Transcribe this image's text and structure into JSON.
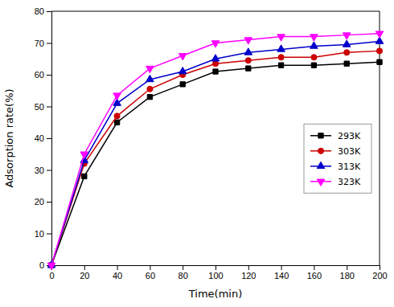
{
  "chart_data": {
    "type": "line",
    "xlabel": "Time(min)",
    "ylabel": "Adsorption rate(%)",
    "x": [
      0,
      20,
      40,
      60,
      80,
      100,
      120,
      140,
      160,
      180,
      200
    ],
    "series": [
      {
        "name": "293K",
        "color": "#000000",
        "marker": "square",
        "values": [
          0,
          28,
          45,
          53,
          57,
          61,
          62,
          63,
          63,
          63.5,
          64
        ]
      },
      {
        "name": "303K",
        "color": "#cc0000",
        "marker": "circle",
        "values": [
          0,
          32,
          47,
          55.5,
          60,
          63.5,
          64.5,
          65.5,
          65.5,
          67,
          67.5
        ]
      },
      {
        "name": "313K",
        "color": "#0000cc",
        "marker": "triangle-up",
        "values": [
          0,
          33,
          51,
          58.5,
          61,
          65,
          67,
          68,
          69,
          69.5,
          70.5
        ]
      },
      {
        "name": "323K",
        "color": "#ff00ff",
        "marker": "triangle-down",
        "values": [
          0,
          35,
          53.5,
          62,
          66,
          70,
          71,
          72,
          72,
          72.5,
          73
        ]
      }
    ],
    "xlim": [
      0,
      200
    ],
    "ylim": [
      0,
      80
    ],
    "xticks": [
      0,
      20,
      40,
      60,
      80,
      100,
      120,
      140,
      160,
      180,
      200
    ],
    "yticks": [
      0,
      10,
      20,
      30,
      40,
      50,
      60,
      70,
      80
    ],
    "grid": false,
    "legend": "right"
  }
}
